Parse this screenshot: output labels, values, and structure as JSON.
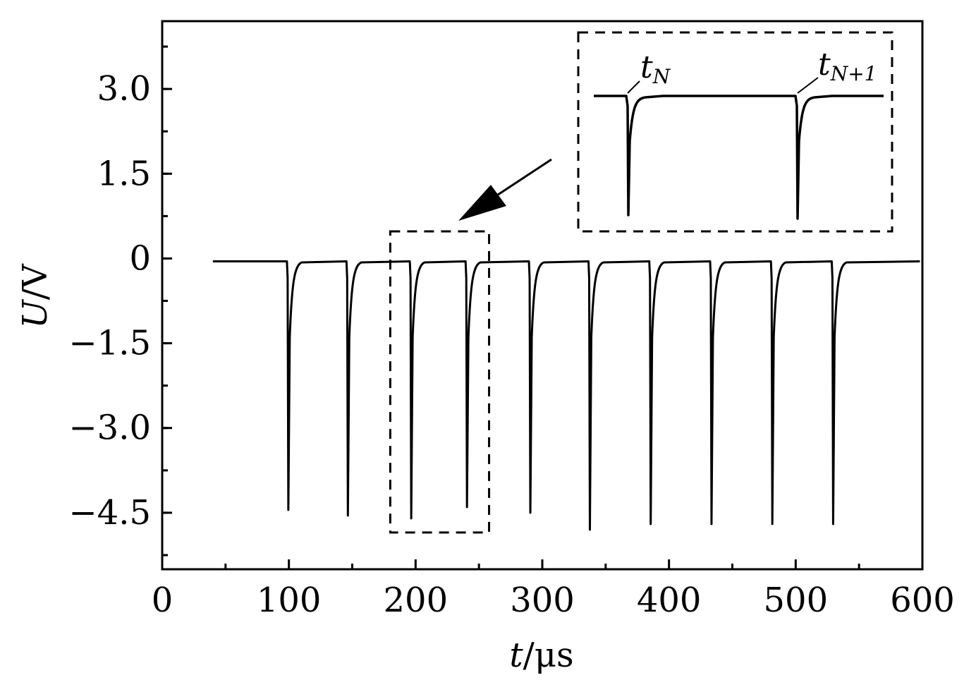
{
  "chart_data": {
    "type": "line",
    "title": "",
    "xlabel_var": "t",
    "xlabel_unit": "/μs",
    "ylabel_var": "U",
    "ylabel_unit": "/V",
    "xlim": [
      0,
      600
    ],
    "ylim": [
      -5.5,
      4.2
    ],
    "xticks": [
      0,
      100,
      200,
      300,
      400,
      500,
      600
    ],
    "xtick_labels": [
      "0",
      "100",
      "200",
      "300",
      "400",
      "500",
      "600"
    ],
    "yticks": [
      3.0,
      1.5,
      0,
      -1.5,
      -3.0,
      -4.5
    ],
    "ytick_labels": [
      "3.0",
      "1.5",
      "0",
      "−1.5",
      "−3.0",
      "−4.5"
    ],
    "grid": false,
    "legend": "none",
    "series": [
      {
        "baseline": -0.05,
        "x_start": 40,
        "x_end": 598,
        "pulses": [
          {
            "t": 99,
            "min": -4.45
          },
          {
            "t": 146,
            "min": -4.55
          },
          {
            "t": 196,
            "min": -4.6
          },
          {
            "t": 240,
            "min": -4.4
          },
          {
            "t": 290,
            "min": -4.5
          },
          {
            "t": 337,
            "min": -4.8
          },
          {
            "t": 385,
            "min": -4.7
          },
          {
            "t": 433,
            "min": -4.7
          },
          {
            "t": 481,
            "min": -4.7
          },
          {
            "t": 529,
            "min": -4.7
          }
        ]
      }
    ],
    "highlight_box": {
      "x_range": [
        180,
        258
      ],
      "y_range": [
        -4.85,
        0.48
      ]
    },
    "inset": {
      "label_1": "t",
      "label_1_sub": "N",
      "label_2": "t",
      "label_2_sub": "N+1"
    }
  }
}
